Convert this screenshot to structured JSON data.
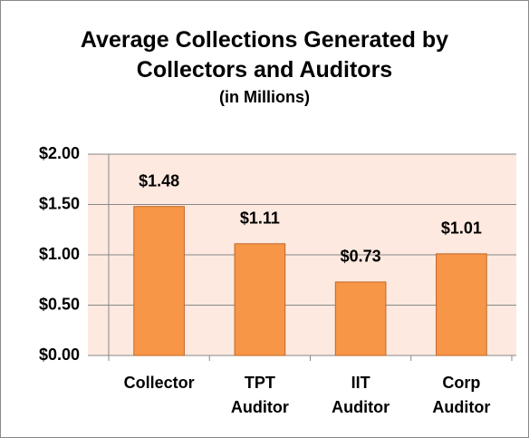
{
  "chart_data": {
    "type": "bar",
    "title": "Average Collections Generated by Collectors and Auditors",
    "subtitle": "(in Millions)",
    "categories": [
      "Collector",
      "TPT Auditor",
      "IIT Auditor",
      "Corp Auditor"
    ],
    "values": [
      1.48,
      1.11,
      0.73,
      1.01
    ],
    "value_labels": [
      "$1.48",
      "$1.11",
      "$0.73",
      "$1.01"
    ],
    "color": "#f79646",
    "ylim": [
      0,
      2
    ],
    "yticks": [
      {
        "value": 0,
        "label": "$0.00"
      },
      {
        "value": 0.5,
        "label": "$0.50"
      },
      {
        "value": 1,
        "label": "$1.00"
      },
      {
        "value": 1.5,
        "label": "$1.50"
      },
      {
        "value": 2,
        "label": "$2.00"
      }
    ],
    "grid": true
  }
}
